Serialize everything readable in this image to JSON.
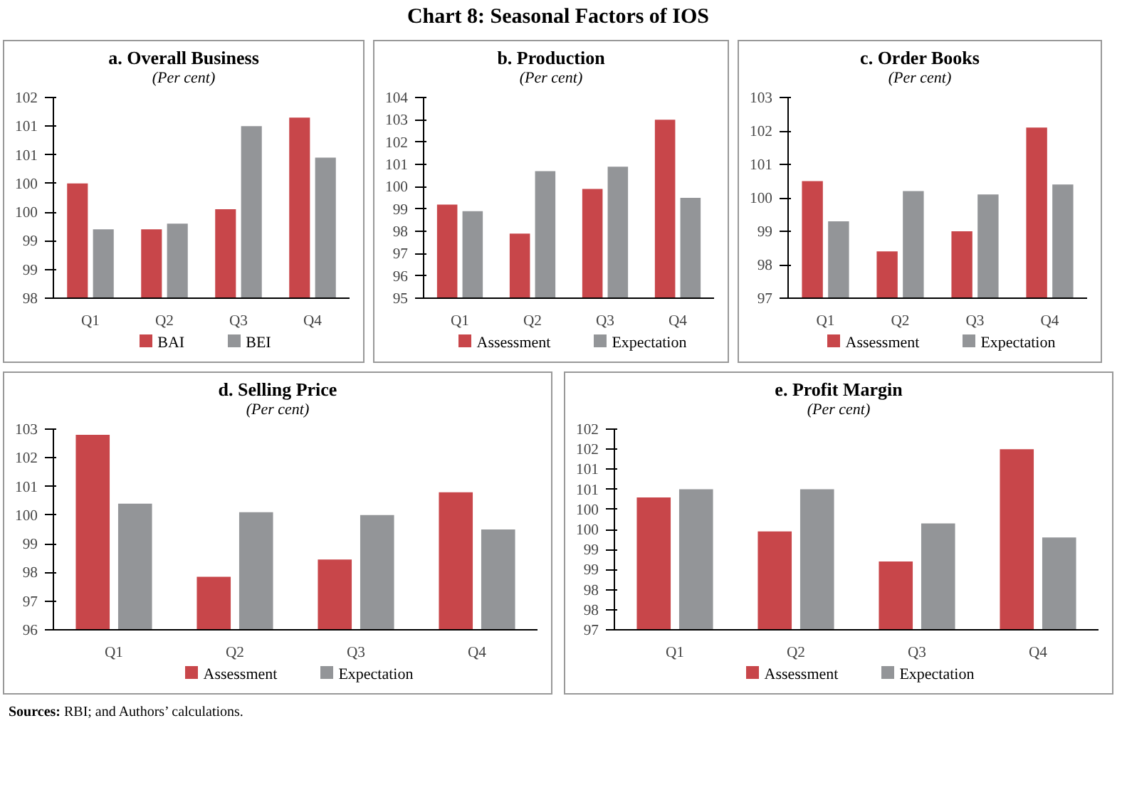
{
  "chart_data": [
    {
      "type": "bar",
      "title": "a. Overall Business",
      "subtitle": "(Per cent)",
      "annotations": [
        "Chart 8: Seasonal Factors of IOS"
      ],
      "categories": [
        "Q1",
        "Q2",
        "Q3",
        "Q4"
      ],
      "series": [
        {
          "name": "BAI",
          "color": "#c8464a",
          "values": [
            100.0,
            99.2,
            99.55,
            101.15
          ]
        },
        {
          "name": "BEI",
          "color": "#939598",
          "values": [
            99.2,
            99.3,
            101.0,
            100.45
          ]
        }
      ],
      "ylim": [
        98,
        101.5
      ],
      "yticks": [
        98,
        {
          "value": 98.5,
          "label": "99"
        },
        99,
        {
          "value": 99.5,
          "label": "100"
        },
        100,
        {
          "value": 100.5,
          "label": "101"
        },
        101,
        {
          "value": 101.5,
          "label": "102"
        }
      ],
      "legend": "bottom"
    },
    {
      "type": "bar",
      "title": "b. Production",
      "subtitle": "(Per cent)",
      "categories": [
        "Q1",
        "Q2",
        "Q3",
        "Q4"
      ],
      "series": [
        {
          "name": "Assessment",
          "color": "#c8464a",
          "values": [
            99.2,
            97.9,
            99.9,
            103.0
          ]
        },
        {
          "name": "Expectation",
          "color": "#939598",
          "values": [
            98.9,
            100.7,
            100.9,
            99.5
          ]
        }
      ],
      "ylim": [
        95,
        104
      ],
      "yticks": [
        95,
        96,
        97,
        98,
        99,
        100,
        101,
        102,
        103,
        104
      ],
      "legend": "bottom"
    },
    {
      "type": "bar",
      "title": "c. Order Books",
      "subtitle": "(Per cent)",
      "categories": [
        "Q1",
        "Q2",
        "Q3",
        "Q4"
      ],
      "series": [
        {
          "name": "Assessment",
          "color": "#c8464a",
          "values": [
            100.5,
            98.4,
            99.0,
            102.1
          ]
        },
        {
          "name": "Expectation",
          "color": "#939598",
          "values": [
            99.3,
            100.2,
            100.1,
            100.4
          ]
        }
      ],
      "ylim": [
        97,
        103
      ],
      "yticks": [
        97,
        98,
        99,
        100,
        101,
        102,
        103
      ],
      "legend": "bottom"
    },
    {
      "type": "bar",
      "title": "d. Selling Price",
      "subtitle": "(Per cent)",
      "categories": [
        "Q1",
        "Q2",
        "Q3",
        "Q4"
      ],
      "series": [
        {
          "name": "Assessment",
          "color": "#c8464a",
          "values": [
            102.8,
            97.85,
            98.45,
            100.8
          ]
        },
        {
          "name": "Expectation",
          "color": "#939598",
          "values": [
            100.4,
            100.1,
            100.0,
            99.5
          ]
        }
      ],
      "ylim": [
        96,
        103
      ],
      "yticks": [
        96,
        97,
        98,
        99,
        100,
        101,
        102,
        103
      ],
      "legend": "bottom"
    },
    {
      "type": "bar",
      "title": "e. Profit Margin",
      "subtitle": "(Per cent)",
      "annotations": [
        "Sources: RBI; and Authors’ calculations."
      ],
      "categories": [
        "Q1",
        "Q2",
        "Q3",
        "Q4"
      ],
      "series": [
        {
          "name": "Assessment",
          "color": "#c8464a",
          "values": [
            100.3,
            99.45,
            98.7,
            101.5
          ]
        },
        {
          "name": "Expectation",
          "color": "#939598",
          "values": [
            100.5,
            100.5,
            99.65,
            99.3
          ]
        }
      ],
      "ylim": [
        97,
        102
      ],
      "yticks": [
        97,
        {
          "value": 97.5,
          "label": "98"
        },
        98,
        {
          "value": 98.5,
          "label": "99"
        },
        99,
        {
          "value": 99.5,
          "label": "100"
        },
        100,
        {
          "value": 100.5,
          "label": "101"
        },
        101,
        {
          "value": 101.5,
          "label": "102"
        },
        102
      ],
      "legend": "bottom"
    }
  ]
}
